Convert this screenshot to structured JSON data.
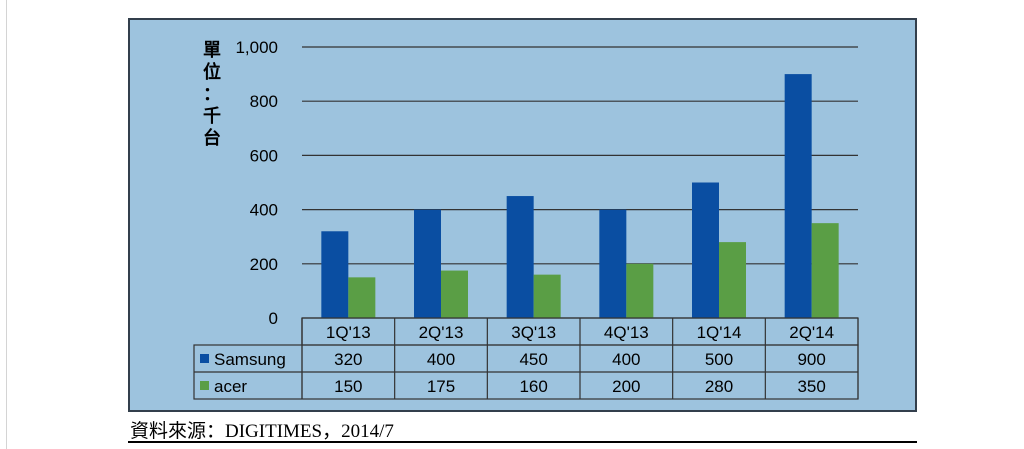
{
  "chart_data": {
    "type": "bar",
    "ylabel": "單位：千台",
    "categories": [
      "1Q'13",
      "2Q'13",
      "3Q'13",
      "4Q'13",
      "1Q'14",
      "2Q'14"
    ],
    "series": [
      {
        "name": "Samsung",
        "values": [
          320,
          400,
          450,
          400,
          500,
          900
        ],
        "labels": [
          "320",
          "400",
          "450",
          "400",
          "500",
          "900"
        ]
      },
      {
        "name": "acer",
        "values": [
          150,
          175,
          160,
          200,
          280,
          350
        ],
        "labels": [
          "150",
          "175",
          "160",
          "200",
          "280",
          "350"
        ]
      }
    ],
    "ylim": [
      0,
      1000
    ],
    "yticks": [
      0,
      200,
      400,
      600,
      800,
      1000
    ],
    "ytick_labels": [
      "0",
      "200",
      "400",
      "600",
      "800",
      "1,000"
    ],
    "grid": true,
    "legend": "data-table",
    "colors": {
      "Samsung": "#0a4ea2",
      "acer": "#5a9e45",
      "plot_bg": "#9dc3de",
      "frame": "#333f4c"
    }
  },
  "source": "資料來源：DIGITIMES，2014/7"
}
